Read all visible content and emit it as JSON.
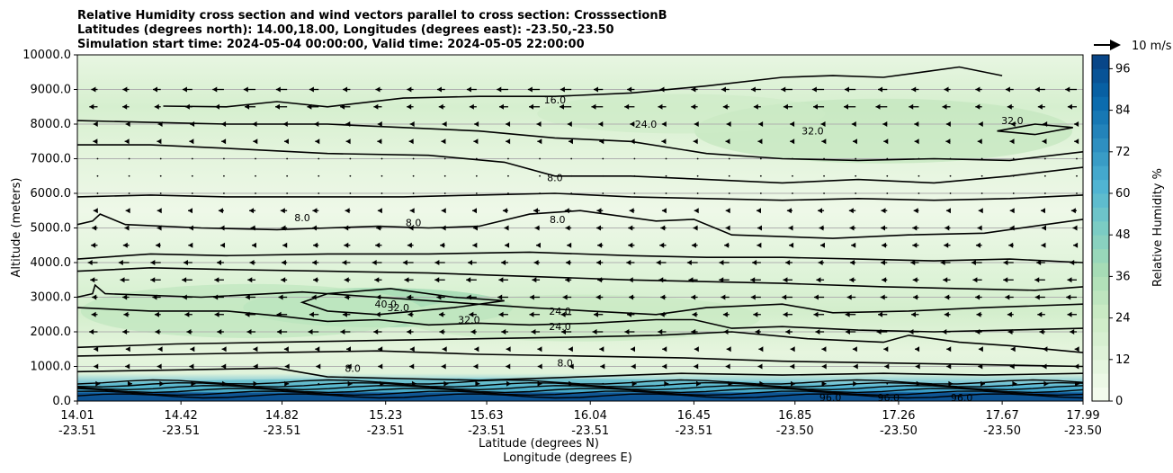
{
  "chart_data": {
    "type": "contourf",
    "title_lines": [
      "Relative Humidity cross section and wind vectors parallel to cross section: CrosssectionB",
      "Latitudes (degrees north): 14.00,18.00, Longitudes (degrees east): -23.50,-23.50",
      "Simulation start time: 2024-05-04 00:00:00, Valid time: 2024-05-05 22:00:00"
    ],
    "xlabel_lat": "Latitude (degrees N)",
    "xlabel_lon": "Longitude (degrees E)",
    "ylabel": "Altitude (meters)",
    "x_ticks": [
      {
        "lat": "14.01",
        "lon": "-23.51"
      },
      {
        "lat": "14.42",
        "lon": "-23.51"
      },
      {
        "lat": "14.82",
        "lon": "-23.51"
      },
      {
        "lat": "15.23",
        "lon": "-23.51"
      },
      {
        "lat": "15.63",
        "lon": "-23.51"
      },
      {
        "lat": "16.04",
        "lon": "-23.51"
      },
      {
        "lat": "16.45",
        "lon": "-23.51"
      },
      {
        "lat": "16.85",
        "lon": "-23.50"
      },
      {
        "lat": "17.26",
        "lon": "-23.50"
      },
      {
        "lat": "17.67",
        "lon": "-23.50"
      },
      {
        "lat": "17.99",
        "lon": "-23.50"
      }
    ],
    "xlim": [
      14.01,
      17.99
    ],
    "y_ticks": [
      "0.0",
      "1000.0",
      "2000.0",
      "3000.0",
      "4000.0",
      "5000.0",
      "6000.0",
      "7000.0",
      "8000.0",
      "9000.0",
      "10000.0"
    ],
    "ylim": [
      0,
      10000
    ],
    "grid": "horizontal",
    "colorbar": {
      "label": "Relative Humidity %",
      "ticks": [
        "0",
        "12",
        "24",
        "36",
        "48",
        "60",
        "72",
        "84",
        "96"
      ],
      "range": [
        0,
        100
      ],
      "levels": 25,
      "colormap": [
        "#f7fcf0",
        "#e0f3db",
        "#ccebc5",
        "#a8ddb5",
        "#7bccc4",
        "#4eb3d3",
        "#2b8cbe",
        "#0868ac",
        "#084081"
      ]
    },
    "quiver_key": {
      "label": "10 m/s"
    },
    "contour_labels": [
      {
        "text": "16.0",
        "x": 15.9,
        "y": 8700
      },
      {
        "text": "24.0",
        "x": 16.26,
        "y": 8000
      },
      {
        "text": "32.0",
        "x": 16.92,
        "y": 7800
      },
      {
        "text": "32.0",
        "x": 17.71,
        "y": 8100
      },
      {
        "text": "8.0",
        "x": 15.9,
        "y": 6450
      },
      {
        "text": "8.0",
        "x": 15.91,
        "y": 5250
      },
      {
        "text": "8.0",
        "x": 14.9,
        "y": 5300
      },
      {
        "text": "8.0",
        "x": 15.34,
        "y": 5150
      },
      {
        "text": "24.0",
        "x": 15.92,
        "y": 2600
      },
      {
        "text": "24.0",
        "x": 15.92,
        "y": 2150
      },
      {
        "text": "32.0",
        "x": 15.56,
        "y": 2350
      },
      {
        "text": "40.0",
        "x": 15.23,
        "y": 2800
      },
      {
        "text": "32.0",
        "x": 15.28,
        "y": 2700
      },
      {
        "text": "8.0",
        "x": 15.94,
        "y": 1100
      },
      {
        "text": "8.0",
        "x": 15.1,
        "y": 950
      },
      {
        "text": "96.0",
        "x": 16.99,
        "y": 100
      },
      {
        "text": "96.0",
        "x": 17.22,
        "y": 100
      },
      {
        "text": "96.0",
        "x": 17.51,
        "y": 100
      }
    ],
    "contours": [
      {
        "level": 16,
        "points": [
          [
            14.35,
            8520
          ],
          [
            14.6,
            8500
          ],
          [
            14.8,
            8650
          ],
          [
            15.0,
            8500
          ],
          [
            15.3,
            8750
          ],
          [
            15.6,
            8800
          ],
          [
            15.9,
            8800
          ],
          [
            16.2,
            8900
          ],
          [
            16.5,
            9100
          ],
          [
            16.8,
            9350
          ],
          [
            17.0,
            9400
          ],
          [
            17.2,
            9350
          ],
          [
            17.35,
            9500
          ],
          [
            17.5,
            9650
          ],
          [
            17.67,
            9400
          ]
        ]
      },
      {
        "level": 8,
        "points": [
          [
            14.01,
            8100
          ],
          [
            14.3,
            8050
          ],
          [
            14.6,
            8000
          ],
          [
            15.0,
            8000
          ],
          [
            15.3,
            7900
          ],
          [
            15.6,
            7800
          ],
          [
            15.9,
            7600
          ],
          [
            16.2,
            7500
          ],
          [
            16.5,
            7150
          ],
          [
            16.8,
            7000
          ],
          [
            17.1,
            6950
          ],
          [
            17.4,
            7000
          ],
          [
            17.7,
            6950
          ],
          [
            17.99,
            7200
          ]
        ]
      },
      {
        "level": 8,
        "points": [
          [
            14.01,
            7400
          ],
          [
            14.3,
            7400
          ],
          [
            14.6,
            7300
          ],
          [
            15.0,
            7150
          ],
          [
            15.4,
            7100
          ],
          [
            15.7,
            6900
          ],
          [
            15.9,
            6500
          ],
          [
            16.2,
            6500
          ],
          [
            16.5,
            6400
          ],
          [
            16.8,
            6300
          ],
          [
            17.1,
            6400
          ],
          [
            17.4,
            6300
          ],
          [
            17.7,
            6500
          ],
          [
            17.99,
            6750
          ]
        ]
      },
      {
        "level": 4,
        "points": [
          [
            14.01,
            5900
          ],
          [
            14.3,
            5950
          ],
          [
            14.6,
            5900
          ],
          [
            15.0,
            5900
          ],
          [
            15.3,
            5900
          ],
          [
            15.6,
            5950
          ],
          [
            15.9,
            6000
          ],
          [
            16.2,
            5900
          ],
          [
            16.5,
            5850
          ],
          [
            16.8,
            5800
          ],
          [
            17.1,
            5850
          ],
          [
            17.4,
            5800
          ],
          [
            17.7,
            5850
          ],
          [
            17.99,
            5950
          ]
        ]
      },
      {
        "level": 8,
        "points": [
          [
            14.01,
            5100
          ],
          [
            14.07,
            5200
          ],
          [
            14.1,
            5400
          ],
          [
            14.2,
            5100
          ],
          [
            14.5,
            5000
          ],
          [
            14.8,
            4950
          ],
          [
            15.0,
            5000
          ],
          [
            15.2,
            5050
          ],
          [
            15.4,
            5000
          ],
          [
            15.6,
            5050
          ],
          [
            15.8,
            5400
          ],
          [
            16.0,
            5500
          ],
          [
            16.3,
            5200
          ],
          [
            16.45,
            5250
          ],
          [
            16.6,
            4800
          ],
          [
            16.8,
            4750
          ],
          [
            17.0,
            4700
          ],
          [
            17.3,
            4800
          ],
          [
            17.6,
            4850
          ],
          [
            17.99,
            5250
          ]
        ]
      },
      {
        "level": 8,
        "points": [
          [
            14.01,
            4100
          ],
          [
            14.3,
            4250
          ],
          [
            14.6,
            4200
          ],
          [
            15.0,
            4250
          ],
          [
            15.4,
            4250
          ],
          [
            15.8,
            4300
          ],
          [
            16.2,
            4200
          ],
          [
            16.5,
            4150
          ],
          [
            16.8,
            4150
          ],
          [
            17.1,
            4100
          ],
          [
            17.4,
            4050
          ],
          [
            17.7,
            4100
          ],
          [
            17.99,
            4000
          ]
        ]
      },
      {
        "level": 16,
        "points": [
          [
            14.01,
            3750
          ],
          [
            14.3,
            3850
          ],
          [
            14.6,
            3800
          ],
          [
            15.0,
            3750
          ],
          [
            15.4,
            3700
          ],
          [
            15.8,
            3600
          ],
          [
            16.2,
            3500
          ],
          [
            16.5,
            3450
          ],
          [
            16.8,
            3400
          ],
          [
            17.2,
            3300
          ],
          [
            17.5,
            3250
          ],
          [
            17.8,
            3200
          ],
          [
            17.99,
            3300
          ]
        ]
      },
      {
        "level": 24,
        "points": [
          [
            14.01,
            3000
          ],
          [
            14.07,
            3100
          ],
          [
            14.08,
            3350
          ],
          [
            14.12,
            3100
          ],
          [
            14.5,
            3000
          ],
          [
            14.9,
            3150
          ],
          [
            15.2,
            3000
          ],
          [
            15.5,
            2850
          ],
          [
            15.8,
            2700
          ],
          [
            16.04,
            2600
          ],
          [
            16.3,
            2500
          ],
          [
            16.5,
            2700
          ],
          [
            16.8,
            2800
          ],
          [
            17.0,
            2550
          ],
          [
            17.3,
            2600
          ],
          [
            17.6,
            2700
          ],
          [
            17.99,
            2800
          ]
        ]
      },
      {
        "level": 32,
        "points": [
          [
            14.01,
            2700
          ],
          [
            14.3,
            2600
          ],
          [
            14.6,
            2600
          ],
          [
            14.82,
            2450
          ],
          [
            15.0,
            2300
          ],
          [
            15.2,
            2350
          ],
          [
            15.4,
            2200
          ],
          [
            15.6,
            2250
          ],
          [
            15.8,
            2200
          ],
          [
            16.04,
            2250
          ],
          [
            16.3,
            2350
          ],
          [
            16.45,
            2350
          ],
          [
            16.6,
            2100
          ],
          [
            16.8,
            2150
          ],
          [
            17.1,
            2050
          ],
          [
            17.4,
            2000
          ],
          [
            17.7,
            2050
          ],
          [
            17.99,
            2100
          ]
        ]
      },
      {
        "level": 16,
        "points": [
          [
            14.01,
            1550
          ],
          [
            14.4,
            1650
          ],
          [
            14.8,
            1700
          ],
          [
            15.2,
            1750
          ],
          [
            15.6,
            1800
          ],
          [
            16.0,
            1850
          ],
          [
            16.3,
            1900
          ],
          [
            16.6,
            2000
          ],
          [
            16.9,
            1800
          ],
          [
            17.2,
            1700
          ],
          [
            17.3,
            1900
          ],
          [
            17.5,
            1700
          ],
          [
            17.7,
            1600
          ],
          [
            17.99,
            1400
          ]
        ]
      },
      {
        "level": 8,
        "points": [
          [
            14.01,
            1300
          ],
          [
            14.4,
            1350
          ],
          [
            14.8,
            1400
          ],
          [
            15.2,
            1450
          ],
          [
            15.6,
            1350
          ],
          [
            16.0,
            1300
          ],
          [
            16.4,
            1250
          ],
          [
            16.8,
            1150
          ],
          [
            17.2,
            1100
          ],
          [
            17.6,
            1050
          ],
          [
            17.99,
            1000
          ]
        ]
      },
      {
        "level": 4,
        "points": [
          [
            14.01,
            850
          ],
          [
            14.4,
            900
          ],
          [
            14.8,
            950
          ],
          [
            15.0,
            700
          ],
          [
            15.3,
            650
          ],
          [
            15.6,
            600
          ],
          [
            16.0,
            700
          ],
          [
            16.4,
            800
          ],
          [
            16.8,
            750
          ],
          [
            17.2,
            800
          ],
          [
            17.6,
            750
          ],
          [
            17.99,
            800
          ]
        ]
      },
      {
        "level": 40,
        "points": [
          [
            15.0,
            3100
          ],
          [
            15.25,
            3250
          ],
          [
            15.5,
            3000
          ],
          [
            15.7,
            2900
          ],
          [
            15.5,
            2700
          ],
          [
            15.2,
            2500
          ],
          [
            15.0,
            2600
          ],
          [
            14.9,
            2850
          ],
          [
            15.0,
            3100
          ]
        ]
      },
      {
        "level": 32,
        "points": [
          [
            17.65,
            7800
          ],
          [
            17.8,
            8000
          ],
          [
            17.95,
            7900
          ],
          [
            17.8,
            7700
          ],
          [
            17.65,
            7800
          ]
        ]
      }
    ]
  }
}
